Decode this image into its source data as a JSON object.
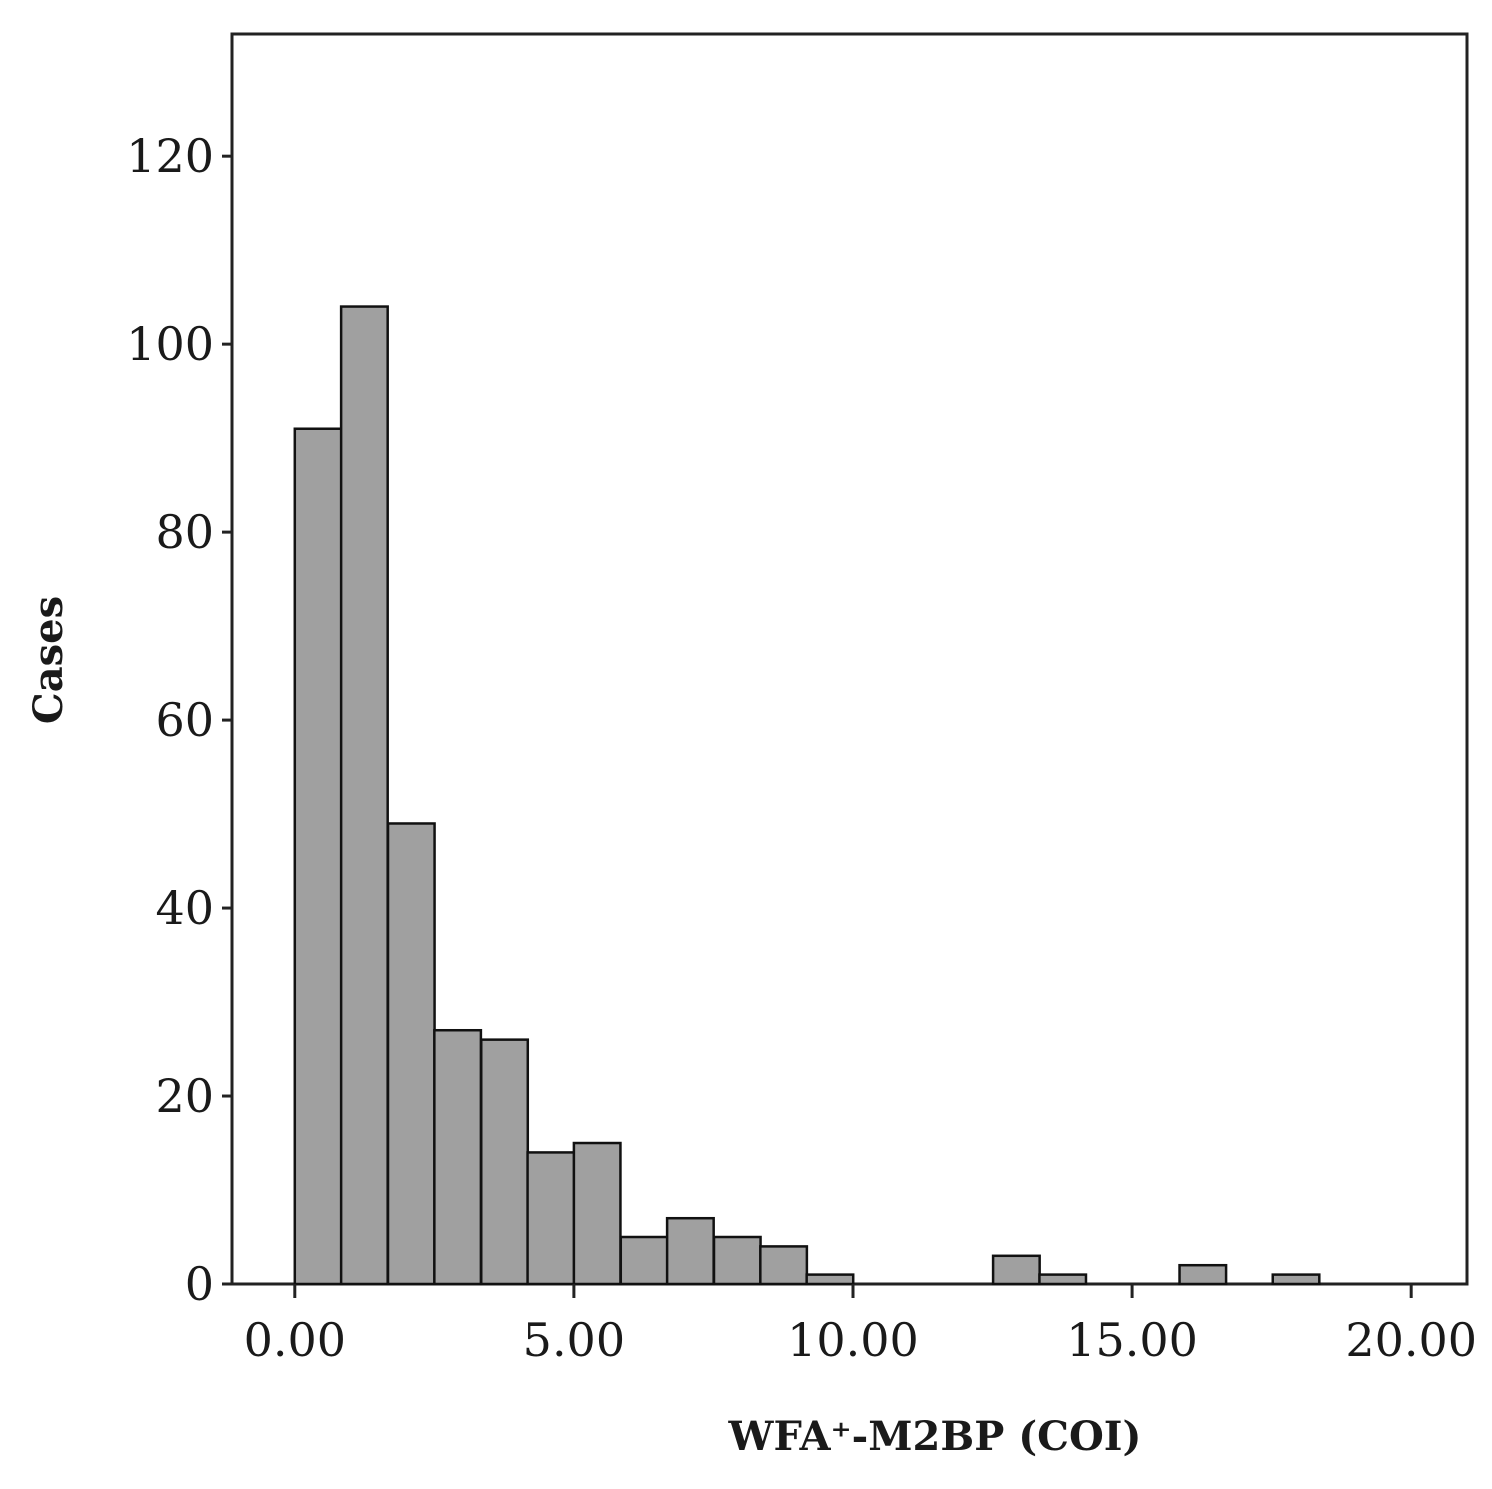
{
  "chart_data": {
    "type": "bar",
    "title": "",
    "xlabel": "WFA⁺-M2BP (COI)",
    "ylabel": "Cases",
    "xlim": [
      -1.125,
      21.0
    ],
    "ylim": [
      0,
      133
    ],
    "xticks": [
      0,
      5,
      10,
      15,
      20
    ],
    "xtick_labels": [
      "0.00",
      "5.00",
      "10.00",
      "15.00",
      "20.00"
    ],
    "yticks": [
      0,
      20,
      40,
      60,
      80,
      100,
      120
    ],
    "ytick_labels": [
      "0",
      "20",
      "40",
      "60",
      "80",
      "100",
      "120"
    ],
    "bin_width": 0.834,
    "bins": [
      {
        "start": 0.0,
        "count": 91
      },
      {
        "start": 0.83,
        "count": 104
      },
      {
        "start": 1.67,
        "count": 49
      },
      {
        "start": 2.5,
        "count": 27
      },
      {
        "start": 3.34,
        "count": 26
      },
      {
        "start": 4.17,
        "count": 14
      },
      {
        "start": 5.0,
        "count": 15
      },
      {
        "start": 5.84,
        "count": 5
      },
      {
        "start": 6.67,
        "count": 7
      },
      {
        "start": 7.51,
        "count": 5
      },
      {
        "start": 8.34,
        "count": 4
      },
      {
        "start": 9.17,
        "count": 1
      },
      {
        "start": 12.51,
        "count": 3
      },
      {
        "start": 13.34,
        "count": 1
      },
      {
        "start": 15.85,
        "count": 2
      },
      {
        "start": 17.52,
        "count": 1
      }
    ],
    "grid": false,
    "colors": {
      "bar_fill": "#a0a0a0",
      "bar_stroke": "#111111"
    }
  }
}
